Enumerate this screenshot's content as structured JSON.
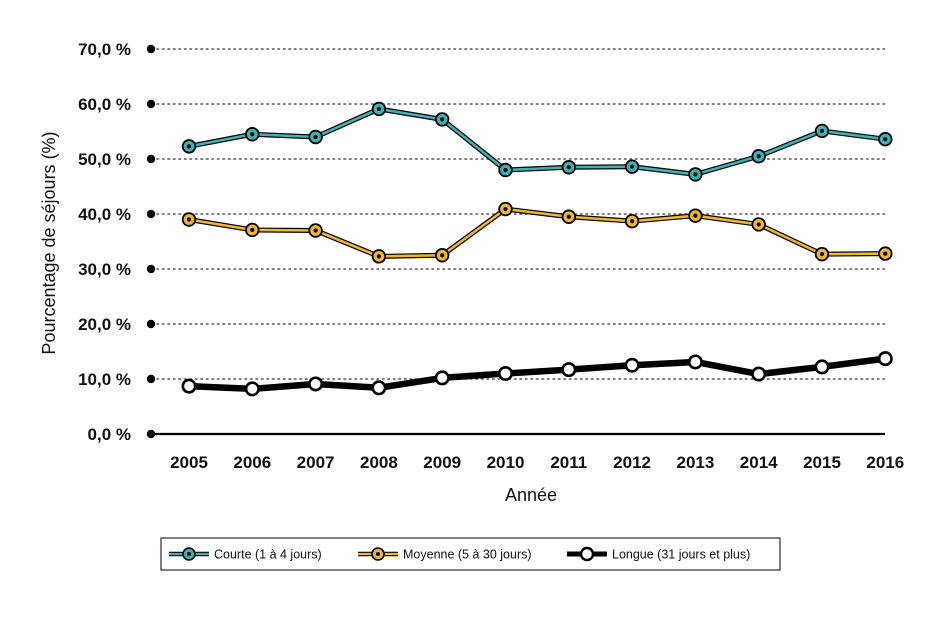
{
  "chart_data": {
    "type": "line",
    "title": "",
    "xlabel": "Année",
    "ylabel": "Pourcentage de séjours (%)",
    "ylim": [
      0,
      70
    ],
    "yticks": [
      0,
      10,
      20,
      30,
      40,
      50,
      60,
      70
    ],
    "ytick_labels": [
      "0,0 %",
      "10,0 %",
      "20,0 %",
      "30,0 %",
      "40,0 %",
      "50,0 %",
      "60,0 %",
      "70,0 %"
    ],
    "categories": [
      "2005",
      "2006",
      "2007",
      "2008",
      "2009",
      "2010",
      "2011",
      "2012",
      "2013",
      "2014",
      "2015",
      "2016"
    ],
    "grid": "horizontal dotted",
    "legend_position": "bottom",
    "series": [
      {
        "name": "Courte (1 à 4 jours)",
        "color": "#3bb3b5",
        "marker": "dot",
        "values": [
          52.3,
          54.5,
          54.0,
          59.1,
          57.2,
          48.0,
          48.5,
          48.6,
          47.2,
          50.5,
          55.1,
          53.6
        ]
      },
      {
        "name": "Moyenne (5 à 30 jours)",
        "color": "#f2b52d",
        "marker": "dot",
        "values": [
          39.0,
          37.1,
          37.0,
          32.3,
          32.5,
          40.9,
          39.5,
          38.7,
          39.7,
          38.1,
          32.7,
          32.8
        ]
      },
      {
        "name": "Longue (31 jours et plus)",
        "color": "#000000",
        "marker": "open-circle",
        "values": [
          8.7,
          8.2,
          9.1,
          8.4,
          10.2,
          11.0,
          11.7,
          12.5,
          13.1,
          10.9,
          12.2,
          13.7
        ]
      }
    ]
  }
}
